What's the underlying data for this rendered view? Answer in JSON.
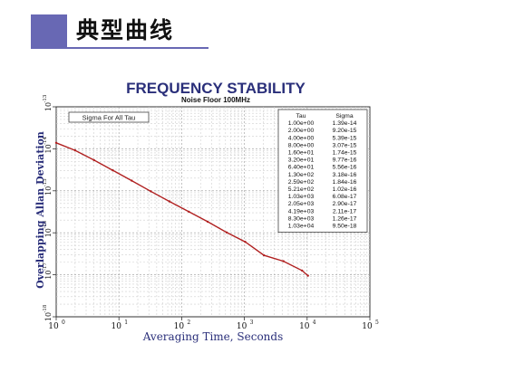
{
  "header": {
    "title": "典型曲线"
  },
  "chart_data": {
    "type": "line",
    "title": "FREQUENCY STABILITY",
    "subtitle": "Noise Floor 100MHz",
    "xlabel": "Averaging Time, Seconds",
    "ylabel": "Overlapping Allan Deviation",
    "xscale": "log",
    "yscale": "log",
    "xlim": [
      1,
      100000
    ],
    "ylim": [
      1e-18,
      1e-13
    ],
    "grid": true,
    "x_ticks": [
      {
        "base": "10",
        "exp": "0"
      },
      {
        "base": "10",
        "exp": "1"
      },
      {
        "base": "10",
        "exp": "2"
      },
      {
        "base": "10",
        "exp": "3"
      },
      {
        "base": "10",
        "exp": "4"
      },
      {
        "base": "10",
        "exp": "5"
      }
    ],
    "y_ticks": [
      {
        "base": "10",
        "exp": "-13"
      },
      {
        "base": "10",
        "exp": "-14"
      },
      {
        "base": "10",
        "exp": "-15"
      },
      {
        "base": "10",
        "exp": "-16"
      },
      {
        "base": "10",
        "exp": "-17"
      },
      {
        "base": "10",
        "exp": "-18"
      }
    ],
    "legend_label": "Sigma For All Tau",
    "legend_placement": "top-left",
    "table_placement": "top-right",
    "table": {
      "headers": [
        "Tau",
        "Sigma"
      ],
      "rows": [
        [
          "1.00e+00",
          "1.39e-14"
        ],
        [
          "2.00e+00",
          "9.20e-15"
        ],
        [
          "4.00e+00",
          "5.39e-15"
        ],
        [
          "8.00e+00",
          "3.07e-15"
        ],
        [
          "1.60e+01",
          "1.74e-15"
        ],
        [
          "3.20e+01",
          "9.77e-16"
        ],
        [
          "6.40e+01",
          "5.56e-16"
        ],
        [
          "1.30e+02",
          "3.18e-16"
        ],
        [
          "2.59e+02",
          "1.84e-16"
        ],
        [
          "5.21e+02",
          "1.02e-16"
        ],
        [
          "1.03e+03",
          "6.08e-17"
        ],
        [
          "2.05e+03",
          "2.90e-17"
        ],
        [
          "4.19e+03",
          "2.11e-17"
        ],
        [
          "8.30e+03",
          "1.26e-17"
        ],
        [
          "1.03e+04",
          "9.50e-18"
        ]
      ]
    },
    "series": [
      {
        "color": "#b02020",
        "x": [
          1,
          2,
          4,
          8,
          16,
          32,
          64,
          130,
          259,
          521,
          1030,
          2050,
          4190,
          8300,
          10300
        ],
        "y": [
          1.39e-14,
          9.2e-15,
          5.39e-15,
          3.07e-15,
          1.74e-15,
          9.77e-16,
          5.56e-16,
          3.18e-16,
          1.84e-16,
          1.02e-16,
          6.08e-17,
          2.9e-17,
          2.11e-17,
          1.26e-17,
          9.5e-18
        ]
      }
    ]
  }
}
